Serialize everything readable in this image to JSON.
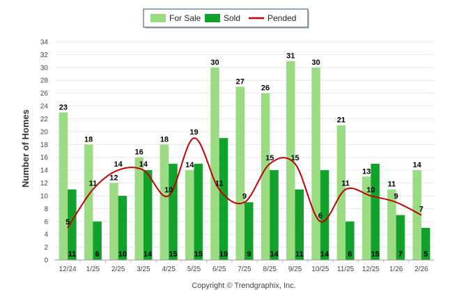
{
  "chart_data": {
    "type": "bar",
    "title": "",
    "ylabel": "Number of Homes",
    "xlabel": "",
    "ylim": [
      0,
      34
    ],
    "ytick_step": 2,
    "grid": true,
    "legend_position": "top-center",
    "categories": [
      "12/24",
      "1/25",
      "2/25",
      "3/25",
      "4/25",
      "5/25",
      "6/25",
      "7/25",
      "8/25",
      "9/25",
      "10/25",
      "11/25",
      "12/25",
      "1/26",
      "2/26"
    ],
    "series": [
      {
        "name": "For Sale",
        "kind": "bar",
        "color": "#9bdb84",
        "values": [
          23,
          18,
          12,
          16,
          18,
          14,
          30,
          27,
          26,
          31,
          30,
          21,
          13,
          11,
          14
        ]
      },
      {
        "name": "Sold",
        "kind": "bar",
        "color": "#12a12b",
        "values": [
          11,
          6,
          10,
          14,
          15,
          15,
          19,
          9,
          14,
          11,
          14,
          6,
          15,
          7,
          5
        ]
      },
      {
        "name": "Pended",
        "kind": "line",
        "color": "#c00000",
        "values": [
          5,
          11,
          14,
          14,
          10,
          19,
          11,
          9,
          15,
          15,
          6,
          11,
          10,
          9,
          7
        ]
      }
    ],
    "footer": "Copyright © Trendgraphix, Inc."
  }
}
